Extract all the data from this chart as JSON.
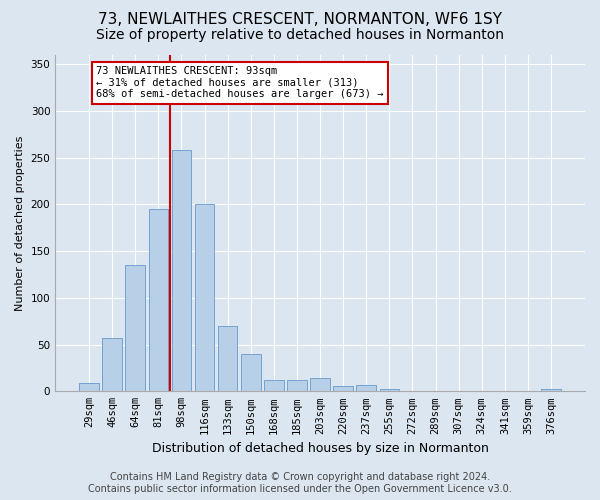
{
  "title": "73, NEWLAITHES CRESCENT, NORMANTON, WF6 1SY",
  "subtitle": "Size of property relative to detached houses in Normanton",
  "xlabel": "Distribution of detached houses by size in Normanton",
  "ylabel": "Number of detached properties",
  "bar_labels": [
    "29sqm",
    "46sqm",
    "64sqm",
    "81sqm",
    "98sqm",
    "116sqm",
    "133sqm",
    "150sqm",
    "168sqm",
    "185sqm",
    "203sqm",
    "220sqm",
    "237sqm",
    "255sqm",
    "272sqm",
    "289sqm",
    "307sqm",
    "324sqm",
    "341sqm",
    "359sqm",
    "376sqm"
  ],
  "bar_values": [
    9,
    57,
    135,
    195,
    258,
    200,
    70,
    40,
    12,
    12,
    14,
    6,
    7,
    3,
    0,
    0,
    0,
    0,
    0,
    0,
    3
  ],
  "bar_color": "#b8cfe8",
  "bar_edgecolor": "#6699cc",
  "vline_x_index": 3.5,
  "vline_color": "#cc0000",
  "ylim": [
    0,
    360
  ],
  "yticks": [
    0,
    50,
    100,
    150,
    200,
    250,
    300,
    350
  ],
  "annotation_text": "73 NEWLAITHES CRESCENT: 93sqm\n← 31% of detached houses are smaller (313)\n68% of semi-detached houses are larger (673) →",
  "annotation_box_facecolor": "#ffffff",
  "annotation_box_edgecolor": "#cc0000",
  "footer_line1": "Contains HM Land Registry data © Crown copyright and database right 2024.",
  "footer_line2": "Contains public sector information licensed under the Open Government Licence v3.0.",
  "background_color": "#dce6f0",
  "plot_bg_color": "#dce6f0",
  "grid_color": "#ffffff",
  "title_fontsize": 11,
  "subtitle_fontsize": 10,
  "xlabel_fontsize": 9,
  "ylabel_fontsize": 8,
  "tick_fontsize": 7.5,
  "annotation_fontsize": 7.5,
  "footer_fontsize": 7
}
